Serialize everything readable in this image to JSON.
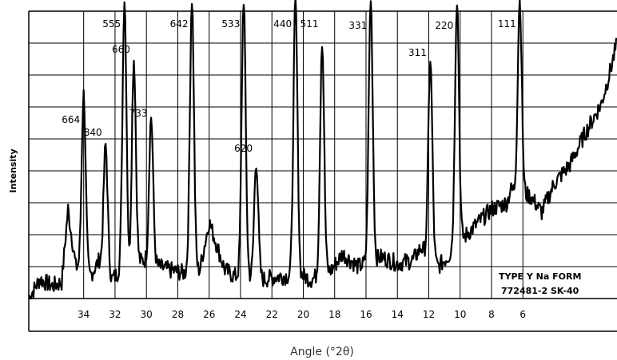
{
  "chart_data": {
    "type": "line",
    "xlabel": "Angle (°2θ)",
    "ylabel": "Intensity",
    "x_reversed": true,
    "xlim": [
      37.5,
      0
    ],
    "ylim": [
      0,
      9
    ],
    "x_ticks": [
      34,
      32,
      30,
      28,
      26,
      24,
      22,
      20,
      18,
      16,
      14,
      12,
      10,
      8,
      6
    ],
    "grid": true,
    "annotations": [
      {
        "text": "TYPE Y   Na FORM",
        "position": "bottom-right"
      },
      {
        "text": "772481-2   SK-40",
        "position": "bottom-right"
      }
    ],
    "peaks": [
      {
        "label": "664",
        "x": 34.0,
        "y": 6.4,
        "text_y": 5.5
      },
      {
        "label": "840",
        "x": 32.6,
        "y": 4.8,
        "text_y": 5.1
      },
      {
        "label": "555",
        "x": 31.4,
        "y": 9.4,
        "text_y": 8.5
      },
      {
        "label": "660",
        "x": 30.8,
        "y": 7.5,
        "text_y": 7.7
      },
      {
        "label": "733",
        "x": 29.7,
        "y": 5.7,
        "text_y": 5.7
      },
      {
        "label": "642",
        "x": 27.1,
        "y": 9.4,
        "text_y": 8.5
      },
      {
        "label": "533",
        "x": 23.8,
        "y": 9.4,
        "text_y": 8.5
      },
      {
        "label": "620",
        "x": 23.0,
        "y": 4.3,
        "text_y": 4.6
      },
      {
        "label": "440",
        "x": 20.5,
        "y": 9.4,
        "text_y": 8.5
      },
      {
        "label": "511",
        "x": 18.8,
        "y": 8.1,
        "text_y": 8.5
      },
      {
        "label": "331",
        "x": 15.7,
        "y": 9.4,
        "text_y": 8.45
      },
      {
        "label": "311",
        "x": 11.9,
        "y": 7.5,
        "text_y": 7.6
      },
      {
        "label": "220",
        "x": 10.2,
        "y": 9.4,
        "text_y": 8.45
      },
      {
        "label": "111",
        "x": 6.2,
        "y": 9.4,
        "text_y": 8.5
      }
    ],
    "series": [
      {
        "baseline": [
          [
            37.5,
            0.0
          ],
          [
            36.8,
            0.6
          ],
          [
            36.0,
            0.4
          ],
          [
            35.4,
            0.5
          ],
          [
            35.0,
            2.8
          ],
          [
            34.5,
            1.0
          ],
          [
            33.6,
            0.7
          ],
          [
            33.0,
            1.2
          ],
          [
            32.2,
            0.6
          ],
          [
            31.8,
            0.8
          ],
          [
            30.2,
            1.2
          ],
          [
            29.2,
            1.0
          ],
          [
            28.6,
            0.9
          ],
          [
            27.6,
            0.8
          ],
          [
            26.6,
            0.9
          ],
          [
            26.0,
            2.4
          ],
          [
            25.0,
            0.9
          ],
          [
            24.4,
            0.7
          ],
          [
            23.4,
            0.7
          ],
          [
            22.5,
            0.6
          ],
          [
            21.5,
            0.7
          ],
          [
            20.0,
            0.7
          ],
          [
            19.5,
            0.6
          ],
          [
            18.2,
            0.9
          ],
          [
            17.5,
            1.4
          ],
          [
            16.5,
            1.0
          ],
          [
            15.0,
            1.3
          ],
          [
            14.0,
            1.1
          ],
          [
            13.0,
            1.2
          ],
          [
            12.5,
            1.6
          ],
          [
            11.4,
            1.0
          ],
          [
            10.8,
            1.3
          ],
          [
            9.8,
            1.9
          ],
          [
            9.0,
            2.3
          ],
          [
            8.0,
            2.8
          ],
          [
            7.0,
            3.0
          ],
          [
            6.8,
            3.4
          ],
          [
            5.5,
            3.2
          ],
          [
            4.8,
            2.7
          ],
          [
            4.0,
            3.6
          ],
          [
            3.0,
            4.2
          ],
          [
            2.0,
            5.2
          ],
          [
            1.0,
            6.1
          ],
          [
            0.5,
            7.0
          ],
          [
            0.0,
            8.0
          ]
        ]
      }
    ]
  }
}
